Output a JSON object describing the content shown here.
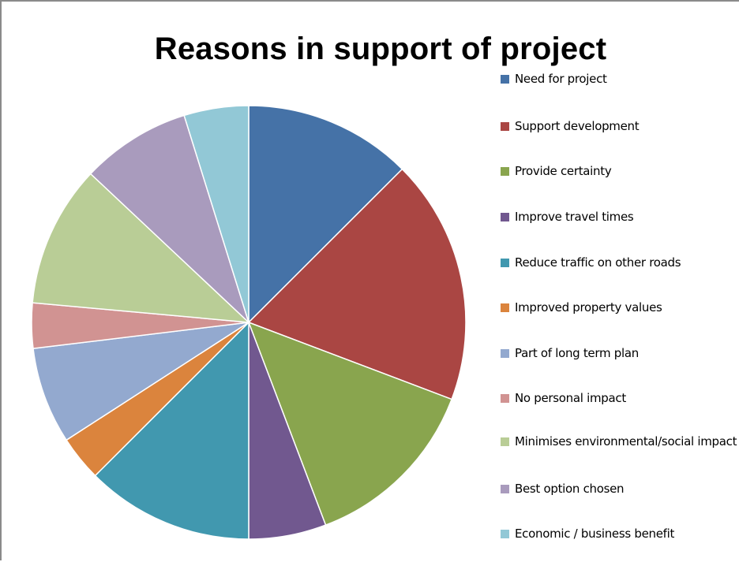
{
  "chart_data": {
    "type": "pie",
    "title": "Reasons in support of project",
    "legend_position": "right",
    "categories": [
      "Need for project",
      "Support development",
      "Provide certainty",
      "Improve travel times",
      "Reduce traffic on other roads",
      "Improved property values",
      "Part of long term plan",
      "No personal impact",
      "Minimises environmental/social impact",
      "Best option chosen",
      "Economic / business benefit"
    ],
    "values": [
      13,
      19,
      14,
      6,
      13,
      3.5,
      7.5,
      3.5,
      11,
      8.5,
      5
    ],
    "colors": [
      "#4572A7",
      "#AA4643",
      "#89A54E",
      "#71588F",
      "#4198AF",
      "#DB843D",
      "#93A9CF",
      "#D19392",
      "#B9CD96",
      "#A99BBD",
      "#92C8D6"
    ]
  }
}
